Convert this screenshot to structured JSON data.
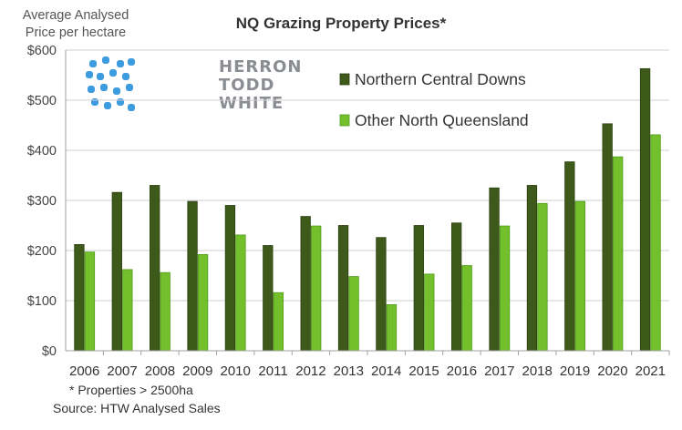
{
  "y_axis_title": [
    "Average Analysed",
    "Price per hectare"
  ],
  "footnote": "* Properties > 2500ha",
  "source": "Source: HTW Analysed Sales",
  "logo_words": [
    "HERRON",
    "TODD",
    "WHITE"
  ],
  "colors": {
    "dark_series": "#3d5a1a",
    "light_series": "#73c02c",
    "logo_blue": "#3d9be0",
    "logo_grey": "#8a8d92"
  },
  "chart_data": {
    "type": "bar",
    "title": "NQ Grazing Property Prices*",
    "xlabel": "",
    "ylabel": "Average Analysed Price per hectare",
    "ylim": [
      0,
      600
    ],
    "yticks": [
      0,
      100,
      200,
      300,
      400,
      500,
      600
    ],
    "ytick_labels": [
      "$0",
      "$100",
      "$200",
      "$300",
      "$400",
      "$500",
      "$600"
    ],
    "grid": "horizontal",
    "legend_position": "top-right",
    "categories": [
      "2006",
      "2007",
      "2008",
      "2009",
      "2010",
      "2011",
      "2012",
      "2013",
      "2014",
      "2015",
      "2016",
      "2017",
      "2018",
      "2019",
      "2020",
      "2021"
    ],
    "series": [
      {
        "name": "Northern Central Downs",
        "color": "#3d5a1a",
        "values": [
          212,
          316,
          330,
          298,
          290,
          210,
          268,
          250,
          226,
          250,
          255,
          325,
          330,
          377,
          453,
          563
        ]
      },
      {
        "name": "Other North Queensland",
        "color": "#73c02c",
        "values": [
          197,
          162,
          156,
          192,
          231,
          116,
          249,
          148,
          92,
          153,
          170,
          249,
          294,
          298,
          387,
          431
        ]
      }
    ]
  }
}
